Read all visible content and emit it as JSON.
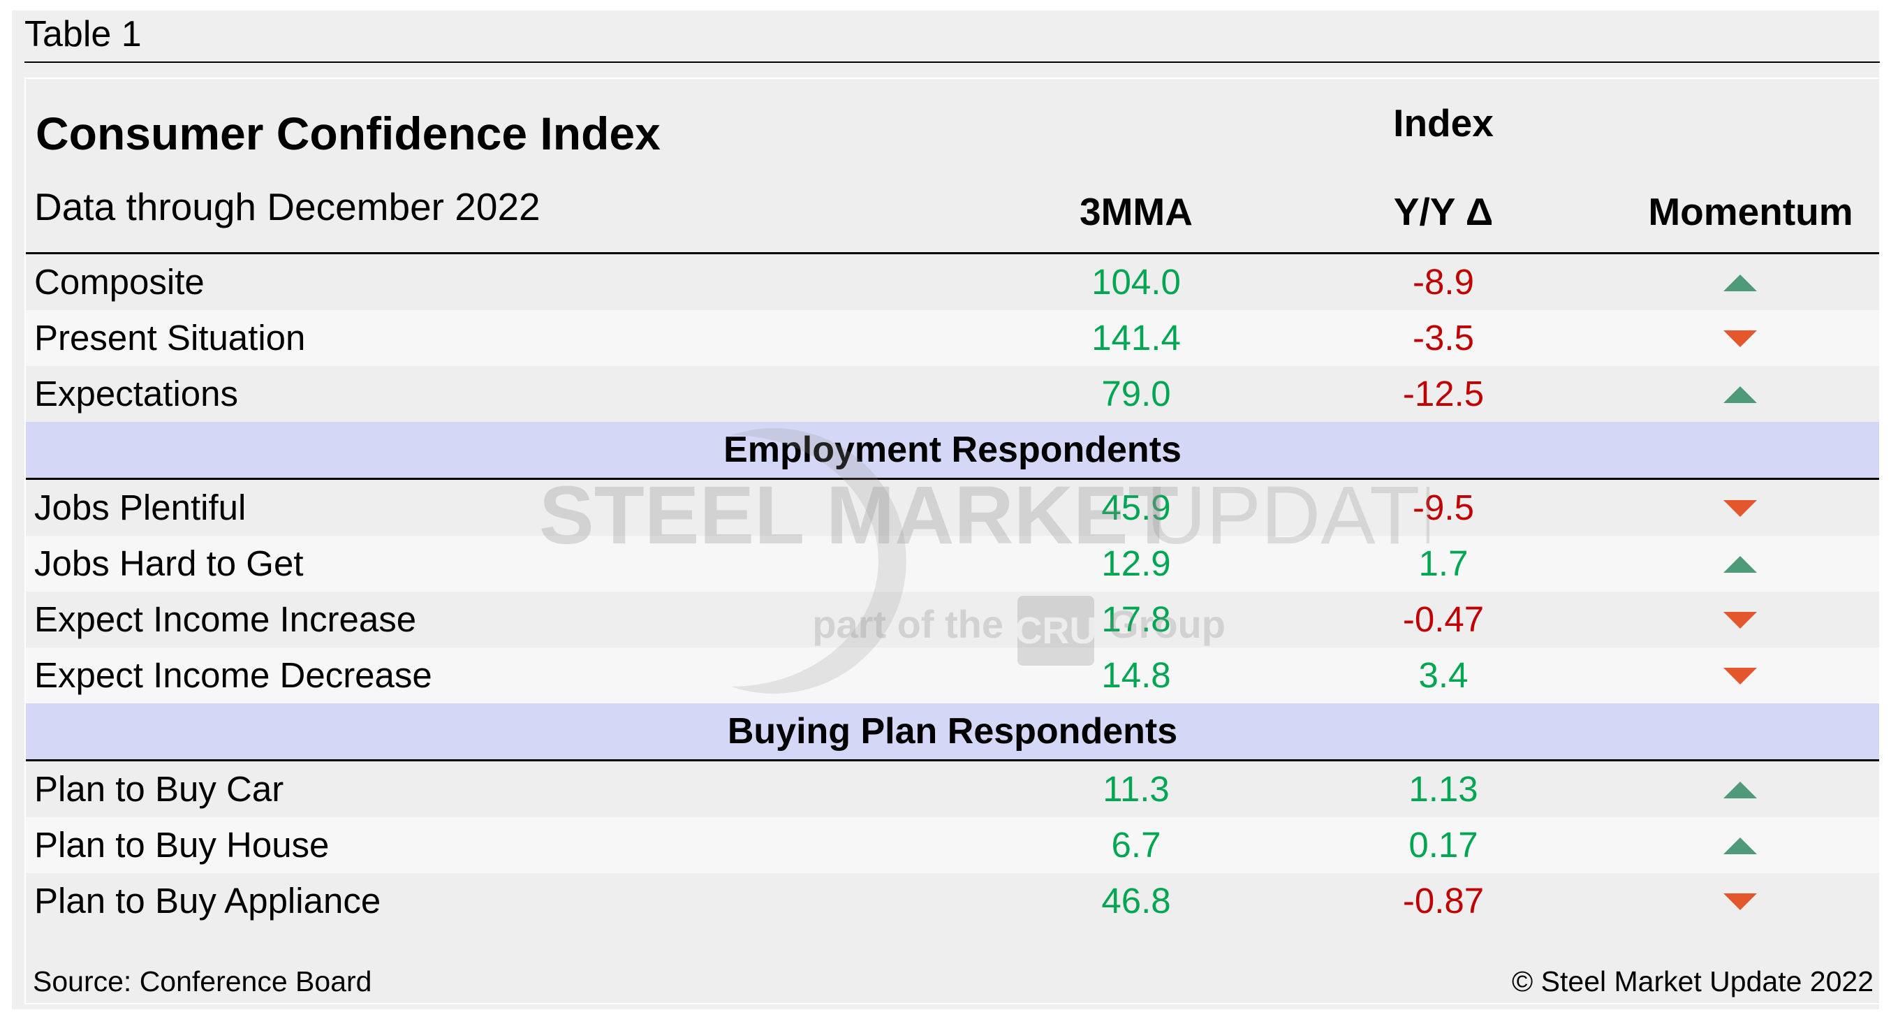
{
  "caption": "Table 1",
  "table": {
    "title": "Consumer Confidence Index",
    "subtitle": "Data through December 2022",
    "group_header": "Index",
    "columns": [
      "3MMA",
      "Y/Y Δ",
      "Momentum"
    ],
    "rows_main": [
      {
        "label": "Composite",
        "mma": "104.0",
        "yoy": "-8.9",
        "yoy_sign": "neg",
        "momentum": "up"
      },
      {
        "label": "Present Situation",
        "mma": "141.4",
        "yoy": "-3.5",
        "yoy_sign": "neg",
        "momentum": "down"
      },
      {
        "label": "Expectations",
        "mma": "79.0",
        "yoy": "-12.5",
        "yoy_sign": "neg",
        "momentum": "up"
      }
    ],
    "section_employment": "Employment Respondents",
    "rows_employment": [
      {
        "label": "Jobs Plentiful",
        "mma": "45.9",
        "yoy": "-9.5",
        "yoy_sign": "neg",
        "momentum": "down"
      },
      {
        "label": "Jobs Hard to Get",
        "mma": "12.9",
        "yoy": "1.7",
        "yoy_sign": "pos",
        "momentum": "up"
      },
      {
        "label": "Expect Income Increase",
        "mma": "17.8",
        "yoy": "-0.47",
        "yoy_sign": "neg",
        "momentum": "down"
      },
      {
        "label": "Expect Income Decrease",
        "mma": "14.8",
        "yoy": "3.4",
        "yoy_sign": "pos",
        "momentum": "down"
      }
    ],
    "section_buying": "Buying Plan Respondents",
    "rows_buying": [
      {
        "label": "Plan to Buy Car",
        "mma": "11.3",
        "yoy": "1.13",
        "yoy_sign": "pos",
        "momentum": "up"
      },
      {
        "label": "Plan to Buy House",
        "mma": "6.7",
        "yoy": "0.17",
        "yoy_sign": "pos",
        "momentum": "up"
      },
      {
        "label": "Plan to Buy Appliance",
        "mma": "46.8",
        "yoy": "-0.87",
        "yoy_sign": "neg",
        "momentum": "down"
      }
    ]
  },
  "footer": {
    "source": "Source: Conference Board",
    "copyright": "© Steel Market Update 2022"
  },
  "watermark": {
    "line1_bold": "STEEL MARKET",
    "line1_light": "UPDATE",
    "line2_pre": "part of the",
    "logo": "CRU",
    "line2_post": "Group"
  },
  "colors": {
    "positive": "#00a651",
    "negative": "#c00000",
    "arrow_up": "#4f9a78",
    "arrow_down": "#e4562c",
    "section_band": "#d4d7f5"
  }
}
